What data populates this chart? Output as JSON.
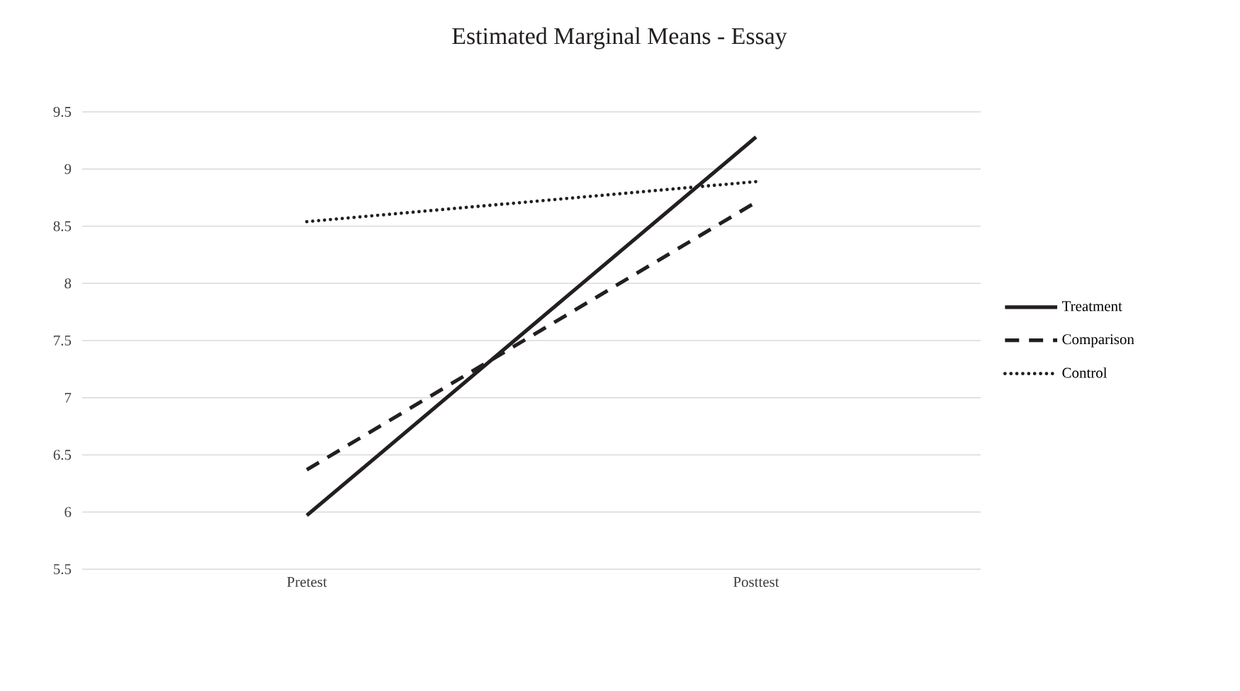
{
  "chart_data": {
    "type": "line",
    "title": "Estimated Marginal Means - Essay",
    "categories": [
      "Pretest",
      "Posttest"
    ],
    "series": [
      {
        "name": "Treatment",
        "color": "#231f20",
        "values": [
          5.97,
          9.28
        ],
        "line_style": "solid"
      },
      {
        "name": "Comparison",
        "color": "#231f20",
        "values": [
          6.37,
          8.71
        ],
        "line_style": "dashed"
      },
      {
        "name": "Control",
        "color": "#231f20",
        "values": [
          8.54,
          8.89
        ],
        "line_style": "dotted"
      }
    ],
    "ylim": [
      5.5,
      9.5
    ],
    "yticks": [
      5.5,
      6,
      6.5,
      7,
      7.5,
      8,
      8.5,
      9,
      9.5
    ],
    "grid": "y",
    "legend": "right",
    "marker": "none"
  }
}
